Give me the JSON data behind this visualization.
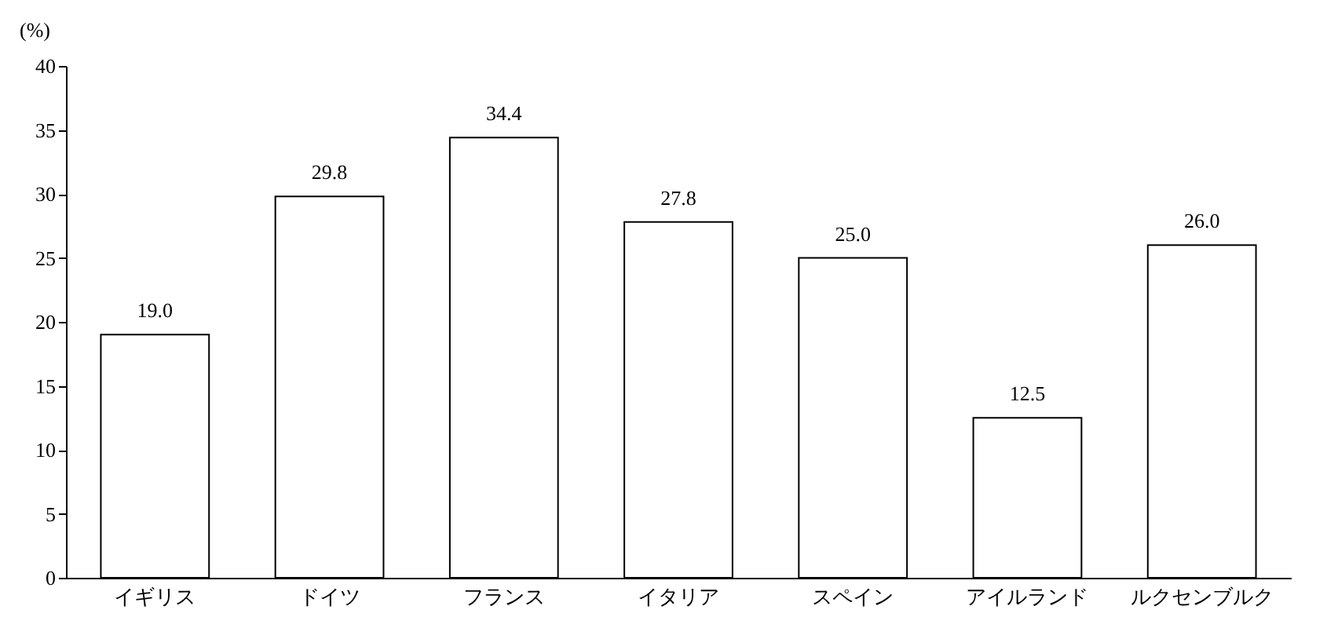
{
  "chart_data": {
    "type": "bar",
    "ylabel": "(%)",
    "categories": [
      "イギリス",
      "ドイツ",
      "フランス",
      "イタリア",
      "スペイン",
      "アイルランド",
      "ルクセンブルク"
    ],
    "values": [
      19.0,
      29.8,
      34.4,
      27.8,
      25.0,
      12.5,
      26.0
    ],
    "value_labels": [
      "19.0",
      "29.8",
      "34.4",
      "27.8",
      "25.0",
      "12.5",
      "26.0"
    ],
    "color": "#ffffff",
    "ylim": [
      0,
      40
    ],
    "yticks": [
      0,
      5,
      10,
      15,
      20,
      25,
      30,
      35,
      40
    ],
    "grid": false
  }
}
